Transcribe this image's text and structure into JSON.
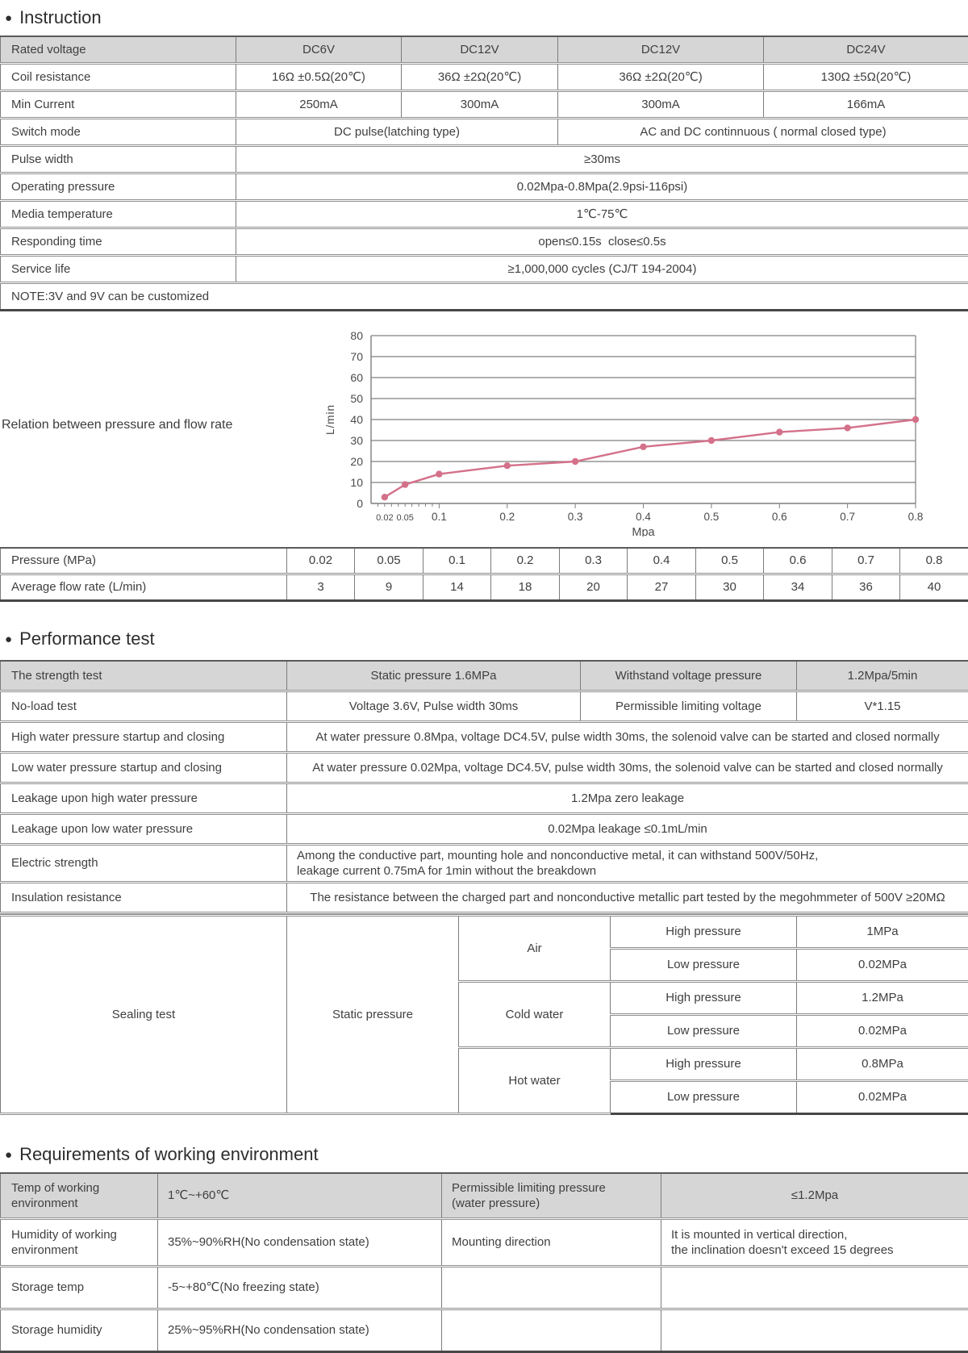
{
  "page": {
    "headings": {
      "instruction": "Instruction",
      "performance": "Performance test",
      "environment": "Requirements of working environment"
    },
    "bullet_icon": "●"
  },
  "instruction_table": {
    "rated_voltage": {
      "label": "Rated voltage",
      "v1": "DC6V",
      "v2": "DC12V",
      "v3": "DC12V",
      "v4": "DC24V"
    },
    "coil_resistance": {
      "label": "Coil resistance",
      "v1": "16Ω ±0.5Ω(20℃)",
      "v2": "36Ω ±2Ω(20℃)",
      "v3": "36Ω ±2Ω(20℃)",
      "v4": "130Ω ±5Ω(20℃)"
    },
    "min_current": {
      "label": "Min Current",
      "v1": "250mA",
      "v2": "300mA",
      "v3": "300mA",
      "v4": "166mA"
    },
    "switch_mode": {
      "label": "Switch mode",
      "left": "DC pulse(latching type)",
      "right": "AC and DC continnuous ( normal closed type)"
    },
    "pulse_width": {
      "label": "Pulse width",
      "value": "≥30ms"
    },
    "operating_pressure": {
      "label": "Operating pressure",
      "value": "0.02Mpa-0.8Mpa(2.9psi-116psi)"
    },
    "media_temperature": {
      "label": "Media temperature",
      "value": "1℃-75℃"
    },
    "responding_time": {
      "label": "Responding time",
      "value": "open≤0.15s  close≤0.5s"
    },
    "service_life": {
      "label": "Service life",
      "value": "≥1,000,000 cycles (CJ/T 194-2004)"
    },
    "note": "NOTE:3V and 9V can be customized"
  },
  "chart_data": {
    "type": "line",
    "caption": "Relation between pressure and flow rate",
    "xlabel": "Mpa",
    "ylabel": "L/min",
    "x": [
      0.02,
      0.05,
      0.1,
      0.2,
      0.3,
      0.4,
      0.5,
      0.6,
      0.7,
      0.8
    ],
    "y": [
      3,
      9,
      14,
      18,
      20,
      27,
      30,
      34,
      36,
      40
    ],
    "xtick_labels": [
      "0.02",
      "0.05",
      "0.1",
      "0.2",
      "0.3",
      "0.4",
      "0.5",
      "0.6",
      "0.7",
      "0.8"
    ],
    "xlim": [
      0,
      0.8
    ],
    "ylim": [
      0,
      80
    ],
    "ytick_step": 10,
    "grid": true,
    "legend": "none",
    "line_color": "#d4718a",
    "axis_color": "#7f7f7f",
    "text_color": "#4a4a4a"
  },
  "flow_table": {
    "pressure_label": "Pressure (MPa)",
    "pressure_values": [
      "0.02",
      "0.05",
      "0.1",
      "0.2",
      "0.3",
      "0.4",
      "0.5",
      "0.6",
      "0.7",
      "0.8"
    ],
    "flow_label": "Average flow rate (L/min)",
    "flow_values": [
      "3",
      "9",
      "14",
      "18",
      "20",
      "27",
      "30",
      "34",
      "36",
      "40"
    ]
  },
  "performance_table": {
    "strength": {
      "label": "The strength test",
      "c2": "Static pressure 1.6MPa",
      "c3": "Withstand voltage pressure",
      "c4": "1.2Mpa/5min"
    },
    "no_load": {
      "label": "No-load test",
      "c2": "Voltage 3.6V, Pulse width 30ms",
      "c3": "Permissible limiting voltage",
      "c4": "V*1.15"
    },
    "high_start": {
      "label": "High water pressure startup and closing",
      "value": "At water pressure 0.8Mpa, voltage DC4.5V, pulse width 30ms, the solenoid valve can be started and closed normally"
    },
    "low_start": {
      "label": "Low water pressure startup and closing",
      "value": "At water pressure 0.02Mpa, voltage DC4.5V, pulse width 30ms, the solenoid valve can be started and closed normally"
    },
    "leak_high": {
      "label": "Leakage upon high water pressure",
      "value": "1.2Mpa zero leakage"
    },
    "leak_low": {
      "label": "Leakage upon low water pressure",
      "value": "0.02Mpa leakage ≤0.1mL/min"
    },
    "electric": {
      "label": "Electric strength",
      "line1": "Among the conductive part, mounting hole and nonconductive metal, it can withstand 500V/50Hz,",
      "line2": "leakage current 0.75mA for 1min without the breakdown"
    },
    "insulation": {
      "label": "Insulation resistance",
      "value": "The resistance between the charged part and nonconductive metallic part tested by the megohmmeter of 500V ≥20MΩ"
    },
    "sealing": {
      "label": "Sealing test",
      "method": "Static pressure",
      "media": [
        {
          "name": "Air",
          "rows": [
            {
              "label": "High pressure",
              "value": "1MPa"
            },
            {
              "label": "Low pressure",
              "value": "0.02MPa"
            }
          ]
        },
        {
          "name": "Cold water",
          "rows": [
            {
              "label": "High pressure",
              "value": "1.2MPa"
            },
            {
              "label": "Low pressure",
              "value": "0.02MPa"
            }
          ]
        },
        {
          "name": "Hot water",
          "rows": [
            {
              "label": "High pressure",
              "value": "0.8MPa"
            },
            {
              "label": "Low pressure",
              "value": "0.02MPa"
            }
          ]
        }
      ]
    }
  },
  "environment_table": {
    "rows": [
      {
        "c1": "Temp of working environment",
        "c2": "1℃~+60℃",
        "c3_line1": "Permissible limiting pressure",
        "c3_line2": "(water pressure)",
        "c4": "≤1.2Mpa"
      },
      {
        "c1": "Humidity of working environment",
        "c2": "35%~90%RH(No condensation state)",
        "c3": "Mounting direction",
        "c4_line1": "It is mounted in vertical direction,",
        "c4_line2": "the inclination doesn't exceed 15 degrees"
      },
      {
        "c1": "Storage temp",
        "c2": "-5~+80℃(No freezing state)",
        "c3": "",
        "c4": ""
      },
      {
        "c1": "Storage humidity",
        "c2": "25%~95%RH(No condensation state)",
        "c3": "",
        "c4": ""
      }
    ]
  }
}
